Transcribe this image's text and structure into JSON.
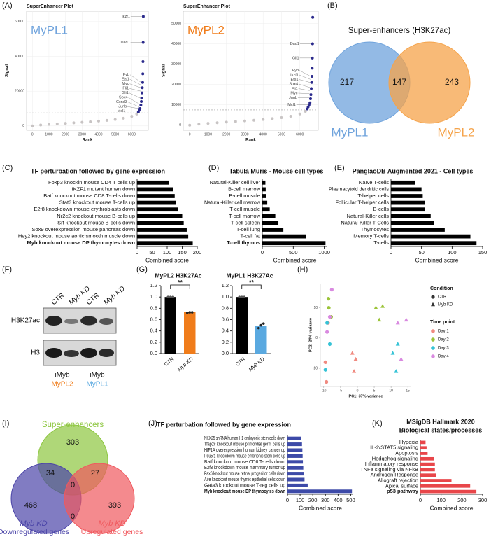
{
  "panel_labels": [
    "(A)",
    "(B)",
    "(C)",
    "(D)",
    "(E)",
    "(F)",
    "(G)",
    "(H)",
    "(I)",
    "(J)",
    "(K)"
  ],
  "venn_b": {
    "title": "Super-enhancers (H3K27ac)",
    "sets": [
      {
        "name": "MyPL1",
        "color": "#6fa3dc"
      },
      {
        "name": "MyPL2",
        "color": "#f5a34a"
      }
    ],
    "counts": [
      217,
      147,
      243
    ]
  },
  "blot": {
    "lanes": [
      "CTR",
      "Myb KD",
      "CTR",
      "Myb KD"
    ],
    "rows": [
      "H3K27ac",
      "H3"
    ],
    "groups": [
      {
        "construct": "iMyb",
        "cell_line": "MyPL2",
        "color": "#f07c1a"
      },
      {
        "construct": "iMyb",
        "cell_line": "MyPL1",
        "color": "#5aa9e0"
      }
    ]
  },
  "venn_i": {
    "sets": [
      {
        "name": "Super-enhancers",
        "color": "#8dc63f"
      },
      {
        "name": "Myb KD",
        "subtitle": "Downregulated genes",
        "color": "#4b45a8"
      },
      {
        "name": "Myb KD",
        "subtitle": "Upregulated genes",
        "color": "#f0595e"
      }
    ],
    "counts": [
      303,
      34,
      27,
      0,
      468,
      0,
      393
    ]
  },
  "chart_data": [
    {
      "type": "scatter",
      "title": "SuperEnhancer Plot",
      "label": "MyPL1",
      "label_color": "#6fa3dc",
      "x_label": "Rank",
      "y_label": "Signal",
      "xlim": [
        -350,
        7000
      ],
      "xticks": [
        0,
        1000,
        2000,
        3000,
        4000,
        5000,
        6000
      ],
      "ylim": [
        -2500,
        66000
      ],
      "yticks": [
        0,
        20000,
        40000,
        60000
      ],
      "grid": true,
      "threshold": 7500,
      "series": [
        {
          "color": "#c8c4c4",
          "x": [
            0,
            500,
            1000,
            1500,
            2000,
            2500,
            3000,
            3500,
            4000,
            4500,
            5000,
            5500,
            6000,
            6300
          ],
          "values": [
            0,
            500,
            900,
            1200,
            1500,
            1800,
            2100,
            2400,
            2800,
            3200,
            3700,
            4400,
            5500,
            6800
          ]
        },
        {
          "color": "#2b2a8c",
          "x": [
            6400,
            6450,
            6500,
            6550,
            6580,
            6600,
            6620,
            6640,
            6660,
            6670,
            6680,
            6690,
            6700
          ],
          "values": [
            8000,
            9000,
            10000,
            12000,
            14000,
            16000,
            19000,
            22000,
            25000,
            30000,
            37000,
            48000,
            63000
          ]
        }
      ],
      "annotations": [
        {
          "text": "Ikzf1",
          "x": 6700,
          "y": 63000
        },
        {
          "text": "Dad1",
          "x": 6690,
          "y": 48000
        },
        {
          "text": "Fyb",
          "x": 6660,
          "y": 25000
        },
        {
          "text": "Ets1",
          "x": 6650,
          "y": 23500
        },
        {
          "text": "Myc",
          "x": 6640,
          "y": 22000
        },
        {
          "text": "Fli1",
          "x": 6630,
          "y": 20000
        },
        {
          "text": "Gli1",
          "x": 6610,
          "y": 16000
        },
        {
          "text": "Sox4",
          "x": 6560,
          "y": 12500
        },
        {
          "text": "Ccnd3",
          "x": 6530,
          "y": 11000
        },
        {
          "text": "Junb",
          "x": 6500,
          "y": 10000
        },
        {
          "text": "Mcl1",
          "x": 6420,
          "y": 8500
        }
      ]
    },
    {
      "type": "scatter",
      "title": "SuperEnhancer Plot",
      "label": "MyPL2",
      "label_color": "#f07c1a",
      "x_label": "Rank",
      "y_label": "Signal",
      "xlim": [
        -350,
        7000
      ],
      "xticks": [
        0,
        1000,
        2000,
        3000,
        4000,
        5000,
        6000
      ],
      "ylim": [
        -2500,
        56000
      ],
      "yticks": [
        0,
        10000,
        20000,
        30000,
        40000,
        50000
      ],
      "grid": true,
      "threshold": 7500,
      "series": [
        {
          "color": "#c8c4c4",
          "x": [
            0,
            500,
            1000,
            1500,
            2000,
            2500,
            3000,
            3500,
            4000,
            4500,
            5000,
            5500,
            6000,
            6300
          ],
          "values": [
            0,
            500,
            900,
            1200,
            1500,
            1800,
            2100,
            2400,
            2800,
            3200,
            3700,
            4400,
            5500,
            6800
          ]
        },
        {
          "color": "#2b2a8c",
          "x": [
            6400,
            6450,
            6500,
            6550,
            6580,
            6600,
            6620,
            6640,
            6660,
            6670,
            6680,
            6690,
            6700
          ],
          "values": [
            8000,
            9000,
            10000,
            11000,
            13000,
            15000,
            18000,
            21000,
            24000,
            28000,
            33000,
            40000,
            53000
          ]
        }
      ],
      "annotations": [
        {
          "text": "Dad1",
          "x": 6690,
          "y": 40000
        },
        {
          "text": "Gli1",
          "x": 6680,
          "y": 33000
        },
        {
          "text": "Fyb",
          "x": 6660,
          "y": 24000
        },
        {
          "text": "Ikzf1",
          "x": 6650,
          "y": 22500
        },
        {
          "text": "Ets1",
          "x": 6640,
          "y": 21000
        },
        {
          "text": "Sox4",
          "x": 6620,
          "y": 18500
        },
        {
          "text": "Fli1",
          "x": 6610,
          "y": 17000
        },
        {
          "text": "Myc",
          "x": 6600,
          "y": 15500
        },
        {
          "text": "Junb",
          "x": 6580,
          "y": 13500
        },
        {
          "text": "Mcl1",
          "x": 6500,
          "y": 10000
        }
      ]
    },
    {
      "type": "bar",
      "horizontal": true,
      "title": "TF perturbation followed by gene expression",
      "x_label": "Combined score",
      "color": "#000000",
      "bold_index": 9,
      "categories": [
        "Foxp3 knockin mouse CD4 T cells up",
        "IKZF1 mutant human down",
        "Batf knockout mouse CD8 T-cells down",
        "Stat3 knockout mouse T-cells up",
        "E2f8 knockdown mouse erythroblasts down",
        "Nr2c2 knockout mouse B-cells up",
        "Srf knockout mouse B-cells down",
        "Sox9 overexpression mouse pancreas down",
        "Hey2 knockout mouse aortic smooth muscle down",
        "Myb knockout mouse DP thymocytes down"
      ],
      "values": [
        105,
        120,
        125,
        130,
        135,
        150,
        155,
        165,
        170,
        185
      ],
      "xlim": [
        0,
        200
      ],
      "xticks": [
        0,
        50,
        100,
        150,
        200
      ]
    },
    {
      "type": "bar",
      "horizontal": true,
      "title": "Tabula Muris - Mouse cell types",
      "x_label": "Combined score",
      "color": "#000000",
      "bold_index": 9,
      "categories": [
        "Natural-Killer cell liver",
        "B-cell marrow",
        "B-cell muscle",
        "Natural-Killer cell marrow",
        "T-cell muscle",
        "T-cell marrow",
        "T-cell spleen",
        "T-cell lung",
        "T-cell fat",
        "T-cell thymus"
      ],
      "values": [
        50,
        55,
        65,
        80,
        120,
        210,
        260,
        340,
        700,
        1020
      ],
      "xlim": [
        0,
        1050
      ],
      "xticks": [
        0,
        500,
        1000
      ]
    },
    {
      "type": "bar",
      "horizontal": true,
      "title": "PanglaoDB Augmented 2021 - Cell types",
      "x_label": "Combined score",
      "color": "#000000",
      "categories": [
        "Naïve T-cells",
        "Plasmacytoid dendritic cells",
        "T-helper cells",
        "Follicular T-helper cells",
        "B-cells",
        "Natural-Killer cells",
        "Natural-Killer T-Cells",
        "Thymocytes",
        "Memory T-cells",
        "T-cells"
      ],
      "values": [
        40,
        50,
        52,
        55,
        55,
        65,
        70,
        88,
        130,
        140
      ],
      "xlim": [
        0,
        150
      ],
      "xticks": [
        0,
        50,
        100,
        150
      ]
    },
    {
      "type": "bar",
      "title": "MyPL2 H3K27Ac",
      "categories": [
        "CTR",
        "Myb KD"
      ],
      "values": [
        1.0,
        0.73
      ],
      "colors": [
        "#000000",
        "#f07c1a"
      ],
      "points": [
        [
          1.0,
          1.0,
          1.0
        ],
        [
          0.72,
          0.73,
          0.73
        ]
      ],
      "significance": "**",
      "ylim": [
        0,
        1.2
      ],
      "yticks": [
        {
          "value": 0,
          "label": "0.0"
        },
        0.2,
        0.4,
        0.6,
        0.8,
        {
          "value": 1,
          "label": "1.0"
        },
        1.2
      ]
    },
    {
      "type": "bar",
      "title": "MyPL1 H3K27Ac",
      "categories": [
        "CTR",
        "Myb KD"
      ],
      "values": [
        1.0,
        0.49
      ],
      "colors": [
        "#000000",
        "#5aa9e0"
      ],
      "points": [
        [
          1.0,
          1.0,
          1.0
        ],
        [
          0.45,
          0.5,
          0.53
        ]
      ],
      "significance": "**",
      "ylim": [
        0,
        1.2
      ],
      "yticks": [
        {
          "value": 0,
          "label": "0.0"
        },
        0.2,
        0.4,
        0.6,
        0.8,
        {
          "value": 1,
          "label": "1.0"
        },
        1.2
      ]
    },
    {
      "type": "scatter",
      "x_label": "PC1: 37% variance",
      "y_label": "PC2: 24% variance",
      "xlim": [
        -11,
        16
      ],
      "xticks": [
        -10,
        -5,
        0,
        5,
        10,
        15
      ],
      "ylim": [
        -16,
        18
      ],
      "yticks": [
        -10,
        0,
        10
      ],
      "condition_title": "Condition",
      "conditions": [
        {
          "name": "CTR",
          "shape": "circle"
        },
        {
          "name": "Myb KD",
          "shape": "triangle"
        }
      ],
      "timepoint_title": "Time point",
      "timepoints": [
        {
          "name": "Day 1",
          "color": "#f08a80"
        },
        {
          "name": "Day 2",
          "color": "#9cc43a"
        },
        {
          "name": "Day 3",
          "color": "#36c3d6"
        },
        {
          "name": "Day 4",
          "color": "#d98ae0"
        }
      ],
      "groups": [
        {
          "condition": 0,
          "timepoint": 0,
          "x": [
            -9.2,
            -9.5,
            -8.7
          ],
          "y": [
            -14.5,
            -8,
            5
          ]
        },
        {
          "condition": 0,
          "timepoint": 1,
          "x": [
            -8.6,
            -8.5,
            -7.8
          ],
          "y": [
            13,
            10,
            7
          ]
        },
        {
          "condition": 0,
          "timepoint": 2,
          "x": [
            -9.5,
            -9,
            -8.2
          ],
          "y": [
            -10.5,
            5,
            -2
          ]
        },
        {
          "condition": 0,
          "timepoint": 3,
          "x": [
            -7.6,
            -8.2,
            -9
          ],
          "y": [
            16,
            7,
            2
          ]
        },
        {
          "condition": 1,
          "timepoint": 0,
          "x": [
            -1.5,
            -0.5,
            -1
          ],
          "y": [
            -5,
            -7,
            -11
          ]
        },
        {
          "condition": 1,
          "timepoint": 1,
          "x": [
            5.5,
            7.5,
            6.5
          ],
          "y": [
            10,
            10.5,
            6
          ]
        },
        {
          "condition": 1,
          "timepoint": 2,
          "x": [
            12,
            11.5,
            10.5
          ],
          "y": [
            -2,
            -11,
            -5
          ]
        },
        {
          "condition": 1,
          "timepoint": 3,
          "x": [
            13,
            12,
            14.5
          ],
          "y": [
            -7,
            5,
            6
          ]
        }
      ]
    },
    {
      "type": "bar",
      "horizontal": true,
      "title": "TF perturbation followed by gene expression",
      "x_label": "Combined score",
      "color": "#3d4aa8",
      "bold_index": 9,
      "categories": [
        "NKX25 shRNA human H1 embryonic stem cells down",
        "Tfap2c knockout mouse primordial germ cells up",
        "HIF1A overexpression human kidney cancer up",
        "Pou5f1 knockdown mouse embrionic stem cells up",
        "Batf knockout mouse CD8 T-cells down",
        "E2f3 knockdown mouse mammary tumor up",
        "Pax6 knockout mouse retinal progenitor cells down",
        "Aire knockout mouse thymic epithelial cells down",
        "Gata3 knockout mouse T-reg cells up",
        "Myb knockout mouse DP thymocytes down"
      ],
      "values": [
        110,
        115,
        118,
        120,
        122,
        125,
        128,
        135,
        160,
        510
      ],
      "xlim": [
        0,
        520
      ],
      "xticks": [
        0,
        100,
        200,
        300,
        400,
        500
      ]
    },
    {
      "type": "bar",
      "horizontal": true,
      "title": "MSigDB Hallmark 2020",
      "subtitle": "Biological states/processes",
      "x_label": "Combined score",
      "color": "#e8464a",
      "bold_index": 9,
      "categories": [
        "Hypoxia",
        "IL-2/STAT5 signaling",
        "Apoptosis",
        "Hedgehog signaling",
        "Inflammatory response",
        "TNFa signaling via NFkB",
        "Androgen Response",
        "Allograft rejection",
        "Apical surface",
        "p53 pathway"
      ],
      "values": [
        25,
        30,
        35,
        65,
        70,
        70,
        75,
        150,
        240,
        270
      ],
      "xlim": [
        0,
        300
      ],
      "xticks": [
        0,
        100,
        200,
        300
      ]
    }
  ]
}
